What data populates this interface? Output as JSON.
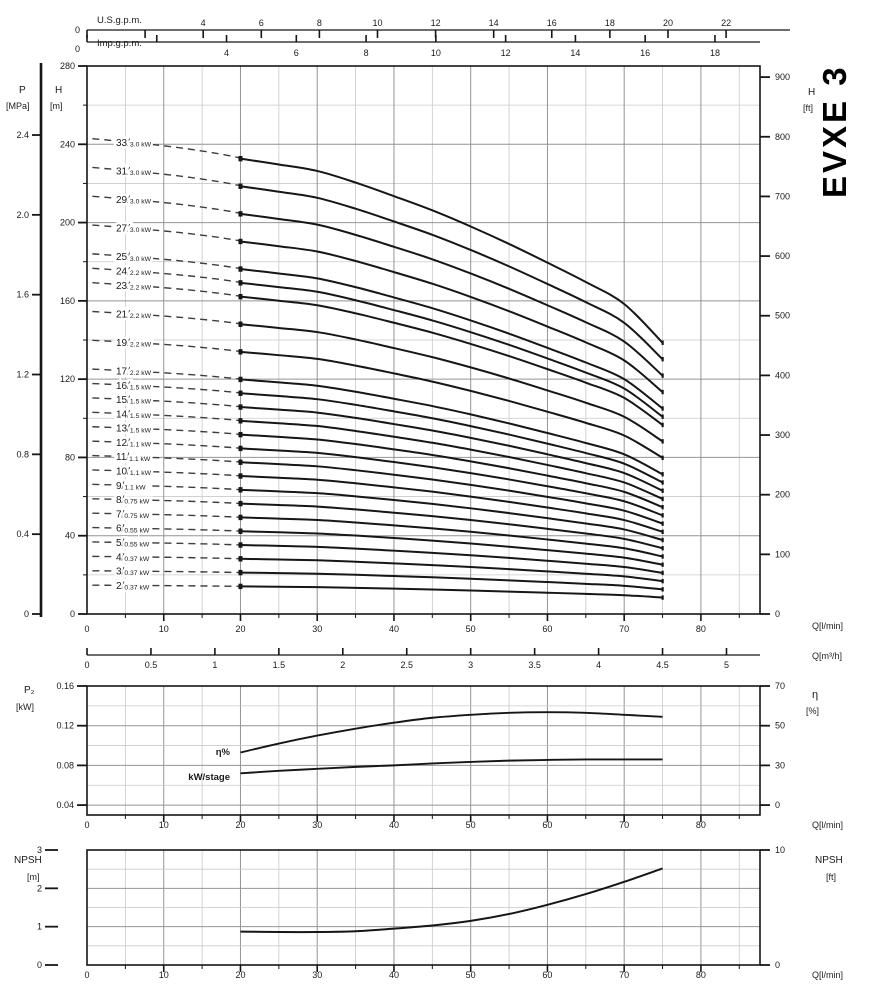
{
  "title": "EVXE 3",
  "labels": {
    "us_gpm": "U.S.g.p.m.",
    "imp_gpm": "Imp.g.p.m.",
    "p": "P",
    "p_unit": "[MPa]",
    "h": "H",
    "h_unit": "[m]",
    "h_ft": "H",
    "h_ft_unit": "[ft]",
    "q_lmin": "Q[l/min]",
    "q_m3h": "Q[m³/h]",
    "p2": "P₂",
    "p2_unit": "[kW]",
    "eta": "η",
    "eta_unit": "[%]",
    "npsh": "NPSH",
    "npsh_m_unit": "[m]",
    "npsh_ft": "NPSH",
    "npsh_ft_unit": "[ft]",
    "power_unit": "kW"
  },
  "top_axes": {
    "us": {
      "ticks": [
        0,
        2,
        4,
        6,
        8,
        10,
        12,
        14,
        16,
        18,
        20,
        22
      ],
      "labeled": [
        0,
        4,
        6,
        8,
        10,
        12,
        14,
        16,
        18,
        20,
        22
      ]
    },
    "imp": {
      "ticks": [
        0,
        2,
        4,
        6,
        8,
        10,
        12,
        14,
        16,
        18
      ],
      "labeled": [
        0,
        4,
        6,
        8,
        10,
        12,
        14,
        16,
        18
      ]
    }
  },
  "chart_data": [
    {
      "id": "head_capacity",
      "type": "line",
      "title": "EVXE 3",
      "x_axis": {
        "label": "Q[l/min]",
        "min": 0,
        "max": 87.7,
        "major_ticks": [
          0,
          10,
          20,
          30,
          40,
          50,
          60,
          70,
          80
        ],
        "minor_step": 5
      },
      "x_axis2": {
        "label": "Q[m³/h]",
        "ticks": [
          "0",
          "0.5",
          "1",
          "1.5",
          "2",
          "2.5",
          "3",
          "3.5",
          "4",
          "4.5",
          "5"
        ]
      },
      "y_left_h": {
        "label": "H [m]",
        "min": 0,
        "max": 280,
        "major_ticks": [
          0,
          40,
          80,
          120,
          160,
          200,
          240,
          280
        ],
        "minor_step": 20
      },
      "y_left_p": {
        "label": "P [MPa]",
        "ticks": [
          "0",
          "0.4",
          "0.8",
          "1.2",
          "1.6",
          "2.0",
          "2.4"
        ]
      },
      "y_right": {
        "label": "H [ft]",
        "ticks": [
          0,
          100,
          200,
          300,
          400,
          500,
          600,
          700,
          800,
          900
        ]
      },
      "solid_start_q": 20,
      "curve_end_q": 75,
      "per_stage_head": {
        "q": [
          20,
          25,
          30,
          35,
          40,
          45,
          50,
          55,
          60,
          65,
          70,
          75
        ],
        "h_m": [
          7.05,
          6.96,
          6.86,
          6.68,
          6.47,
          6.25,
          6.0,
          5.73,
          5.44,
          5.14,
          4.8,
          4.2
        ]
      },
      "dashed_extension": {
        "q": [
          0.7,
          6,
          12,
          17,
          20
        ],
        "h_m": [
          7.36,
          7.3,
          7.22,
          7.13,
          7.06
        ]
      },
      "curves": [
        {
          "stages": "33",
          "power": "3.0"
        },
        {
          "stages": "31",
          "power": "3.0"
        },
        {
          "stages": "29",
          "power": "3.0"
        },
        {
          "stages": "27",
          "power": "3.0"
        },
        {
          "stages": "25",
          "power": "3.0"
        },
        {
          "stages": "24",
          "power": "2.2"
        },
        {
          "stages": "23",
          "power": "2.2"
        },
        {
          "stages": "21",
          "power": "2.2"
        },
        {
          "stages": "19",
          "power": "2.2"
        },
        {
          "stages": "17",
          "power": "2.2"
        },
        {
          "stages": "16",
          "power": "1.5"
        },
        {
          "stages": "15",
          "power": "1.5"
        },
        {
          "stages": "14",
          "power": "1.5"
        },
        {
          "stages": "13",
          "power": "1.5"
        },
        {
          "stages": "12",
          "power": "1.1"
        },
        {
          "stages": "11",
          "power": "1.1"
        },
        {
          "stages": "10",
          "power": "1.1"
        },
        {
          "stages": "9",
          "power": "1.1"
        },
        {
          "stages": "8",
          "power": "0.75"
        },
        {
          "stages": "7",
          "power": "0.75"
        },
        {
          "stages": "6",
          "power": "0.55"
        },
        {
          "stages": "5",
          "power": "0.55"
        },
        {
          "stages": "4",
          "power": "0.37"
        },
        {
          "stages": "3",
          "power": "0.37"
        },
        {
          "stages": "2",
          "power": "0.37"
        }
      ]
    },
    {
      "id": "power_efficiency",
      "type": "line",
      "x_axis": {
        "label": "Q[l/min]",
        "major_ticks": [
          0,
          10,
          20,
          30,
          40,
          50,
          60,
          70,
          80
        ],
        "minor_step": 5
      },
      "y_left": {
        "label": "P₂ [kW]",
        "ticks": [
          "0.04",
          "0.08",
          "0.12",
          "0.16"
        ],
        "minor_lines": [
          0.06,
          0.1,
          0.14
        ]
      },
      "y_right": {
        "label": "η [%]",
        "ticks": [
          0,
          30,
          50,
          70
        ],
        "note": "nonlinear, ticks aligned to kW gridlines"
      },
      "series": [
        {
          "name": "η%",
          "axis": "right",
          "x": [
            20,
            25,
            30,
            35,
            40,
            45,
            50,
            55,
            60,
            65,
            70,
            75
          ],
          "y": [
            36.5,
            41,
            45,
            48.5,
            51.5,
            54,
            55.5,
            56.5,
            56.8,
            56.5,
            55.5,
            54.5
          ]
        },
        {
          "name": "kW/stage",
          "axis": "left",
          "x": [
            20,
            25,
            30,
            35,
            40,
            45,
            50,
            55,
            60,
            65,
            70,
            75
          ],
          "y": [
            0.072,
            0.0745,
            0.0765,
            0.0785,
            0.08,
            0.082,
            0.0835,
            0.0848,
            0.0855,
            0.086,
            0.086,
            0.086
          ]
        }
      ]
    },
    {
      "id": "npsh",
      "type": "line",
      "x_axis": {
        "label": "Q[l/min]",
        "major_ticks": [
          0,
          10,
          20,
          30,
          40,
          50,
          60,
          70,
          80
        ],
        "minor_step": 5
      },
      "y_left": {
        "label": "NPSH [m]",
        "ticks": [
          0,
          1,
          2,
          3
        ],
        "minor_step": 0.5,
        "min": 0,
        "max": 3
      },
      "y_right": {
        "label": "NPSH [ft]",
        "ticks": [
          0,
          10
        ]
      },
      "series": [
        {
          "name": "NPSH",
          "x": [
            20,
            25,
            30,
            35,
            40,
            45,
            50,
            55,
            60,
            65,
            70,
            75
          ],
          "y": [
            0.87,
            0.86,
            0.86,
            0.88,
            0.95,
            1.03,
            1.15,
            1.33,
            1.57,
            1.85,
            2.17,
            2.52
          ]
        }
      ]
    }
  ]
}
